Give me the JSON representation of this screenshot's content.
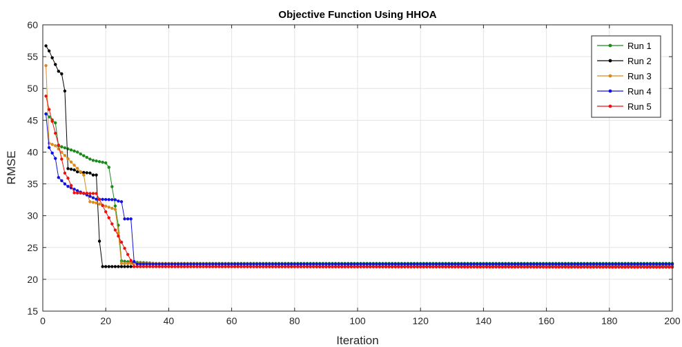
{
  "chart_data": {
    "type": "line",
    "title": "Objective Function Using HHOA",
    "xlabel": "Iteration",
    "ylabel": "RMSE",
    "xlim": [
      0,
      200
    ],
    "ylim": [
      15,
      60
    ],
    "xticks": [
      0,
      20,
      40,
      60,
      80,
      100,
      120,
      140,
      160,
      180,
      200
    ],
    "yticks": [
      15,
      20,
      25,
      30,
      35,
      40,
      45,
      50,
      55,
      60
    ],
    "grid": true,
    "legend_position": "top-right",
    "n_iterations": 200,
    "series": [
      {
        "name": "Run 1",
        "color": "#1a8a1a",
        "breakpoints": [
          [
            1,
            46.0
          ],
          [
            4,
            44.6
          ],
          [
            5,
            41.0
          ],
          [
            11,
            40.0
          ],
          [
            12,
            39.7
          ],
          [
            15,
            38.9
          ],
          [
            16,
            38.7
          ],
          [
            17,
            38.6
          ],
          [
            18,
            38.5
          ],
          [
            19,
            38.4
          ],
          [
            20,
            38.3
          ],
          [
            21,
            37.6
          ],
          [
            24,
            28.5
          ],
          [
            25,
            22.9
          ],
          [
            28,
            22.7
          ],
          [
            33,
            22.6
          ],
          [
            36,
            22.5
          ],
          [
            200,
            22.5
          ]
        ]
      },
      {
        "name": "Run 2",
        "color": "#000000",
        "breakpoints": [
          [
            1,
            56.7
          ],
          [
            2,
            55.9
          ],
          [
            5,
            52.7
          ],
          [
            6,
            52.3
          ],
          [
            7,
            49.6
          ],
          [
            8,
            37.4
          ],
          [
            10,
            37.2
          ],
          [
            11,
            36.9
          ],
          [
            15,
            36.7
          ],
          [
            16,
            36.4
          ],
          [
            17,
            36.4
          ],
          [
            18,
            26.0
          ],
          [
            19,
            22.0
          ],
          [
            200,
            22.0
          ]
        ]
      },
      {
        "name": "Run 3",
        "color": "#d98a1a",
        "breakpoints": [
          [
            1,
            53.6
          ],
          [
            2,
            41.4
          ],
          [
            4,
            41.0
          ],
          [
            13,
            36.4
          ],
          [
            14,
            33.5
          ],
          [
            15,
            32.2
          ],
          [
            16,
            32.1
          ],
          [
            17,
            32.0
          ],
          [
            23,
            31.0
          ],
          [
            24,
            27.3
          ],
          [
            25,
            22.5
          ],
          [
            200,
            22.2
          ]
        ]
      },
      {
        "name": "Run 4",
        "color": "#1010e0",
        "breakpoints": [
          [
            1,
            46.0
          ],
          [
            2,
            40.7
          ],
          [
            4,
            39.0
          ],
          [
            5,
            36.0
          ],
          [
            7,
            35.0
          ],
          [
            8,
            34.6
          ],
          [
            17,
            32.6
          ],
          [
            23,
            32.5
          ],
          [
            24,
            32.3
          ],
          [
            25,
            32.2
          ],
          [
            26,
            29.5
          ],
          [
            28,
            29.5
          ],
          [
            29,
            22.8
          ],
          [
            30,
            22.4
          ],
          [
            200,
            22.4
          ]
        ]
      },
      {
        "name": "Run 5",
        "color": "#ee1010",
        "breakpoints": [
          [
            1,
            48.8
          ],
          [
            2,
            46.7
          ],
          [
            5,
            41.1
          ],
          [
            7,
            36.7
          ],
          [
            8,
            35.9
          ],
          [
            10,
            33.6
          ],
          [
            15,
            33.5
          ],
          [
            17,
            33.5
          ],
          [
            29,
            22.0
          ],
          [
            200,
            21.9
          ]
        ]
      }
    ]
  }
}
